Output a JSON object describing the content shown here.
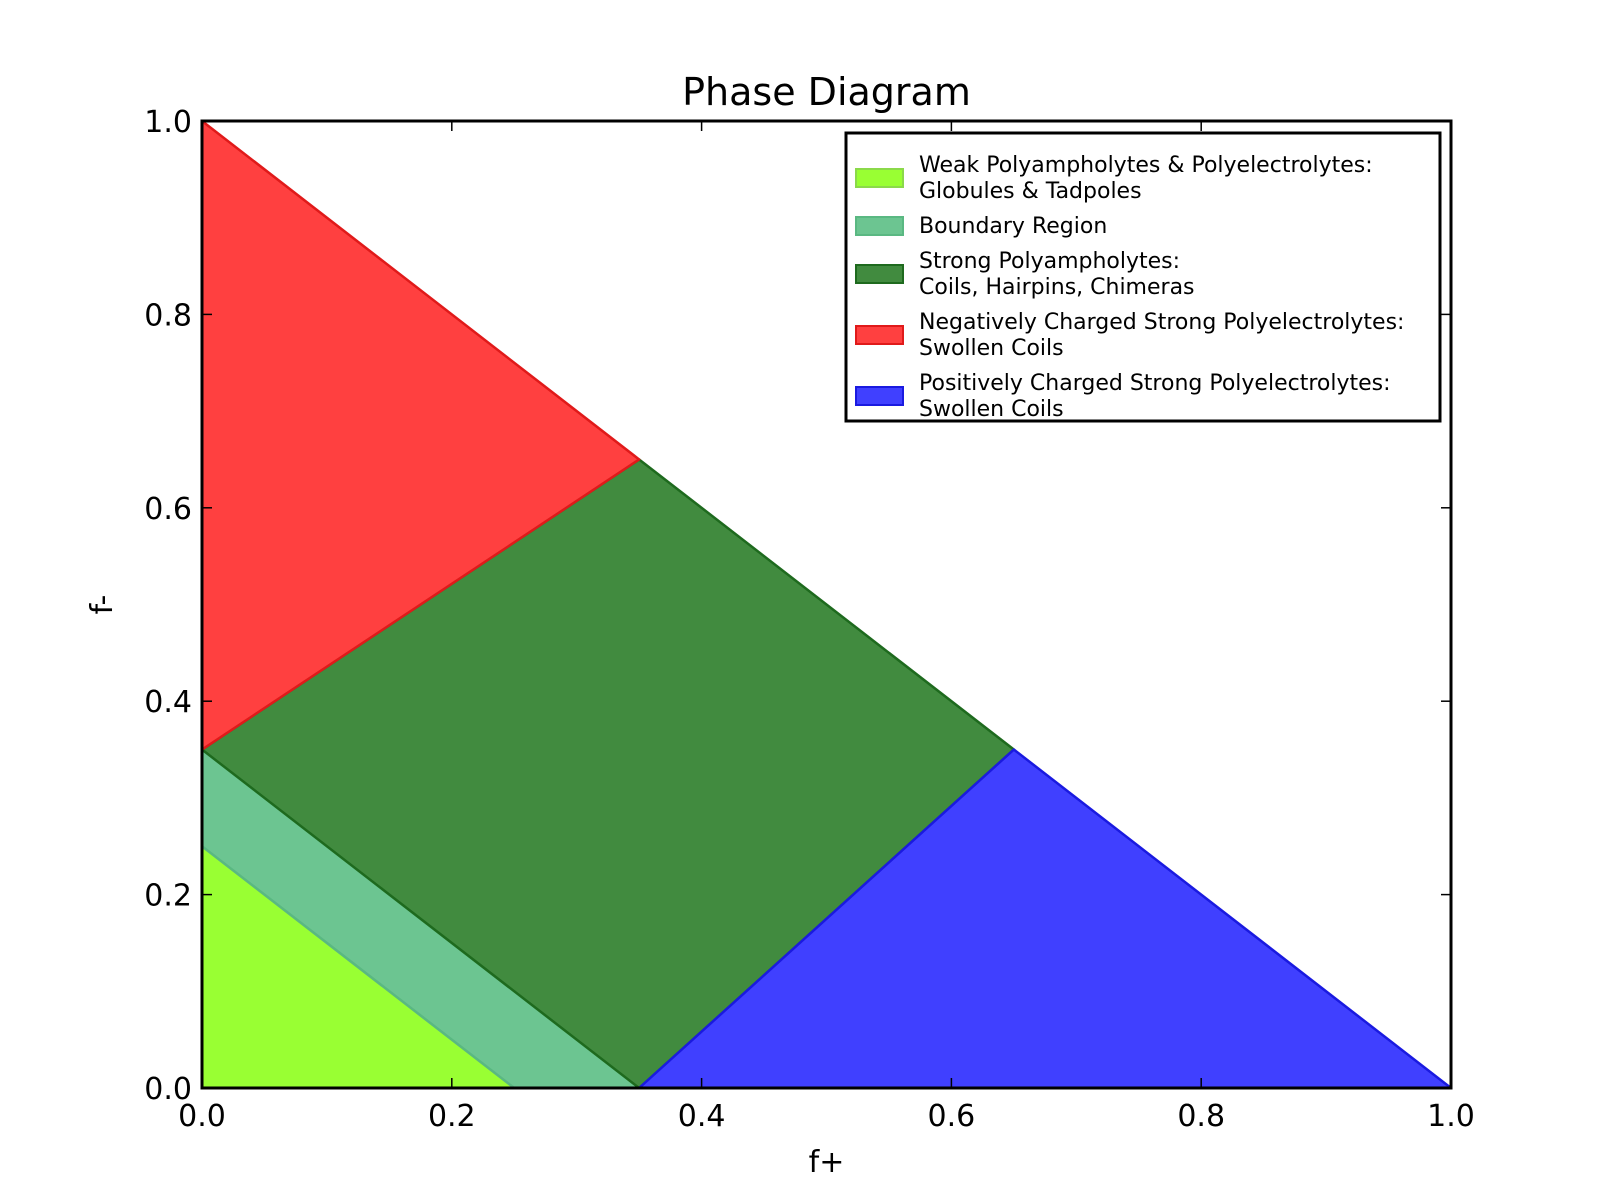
{
  "chart_data": {
    "type": "area",
    "title": "Phase Diagram",
    "xlabel": "f+",
    "ylabel": "f-",
    "xlim": [
      0.0,
      1.0
    ],
    "ylim": [
      0.0,
      1.0
    ],
    "x_ticks": [
      "0.0",
      "0.2",
      "0.4",
      "0.6",
      "0.8",
      "1.0"
    ],
    "y_ticks": [
      "0.0",
      "0.2",
      "0.4",
      "0.6",
      "0.8",
      "1.0"
    ],
    "grid": false,
    "legend_position": "top-right",
    "regions": [
      {
        "id": "weak",
        "label_lines": [
          "Weak Polyampholytes & Polyelectrolytes:",
          "Globules & Tadpoles"
        ],
        "fill": "#99ff33",
        "stroke": "#8bd94a",
        "points": [
          [
            0.0,
            0.0
          ],
          [
            0.25,
            0.0
          ],
          [
            0.0,
            0.25
          ]
        ]
      },
      {
        "id": "boundary",
        "label_lines": [
          "Boundary Region"
        ],
        "fill": "#6cc591",
        "stroke": "#5ab882",
        "points": [
          [
            0.25,
            0.0
          ],
          [
            0.35,
            0.0
          ],
          [
            0.0,
            0.35
          ],
          [
            0.0,
            0.25
          ]
        ]
      },
      {
        "id": "strong-pa",
        "label_lines": [
          "Strong Polyampholytes:",
          "Coils, Hairpins, Chimeras"
        ],
        "fill": "#418b3f",
        "stroke": "#1e6a1e",
        "points": [
          [
            0.35,
            0.0
          ],
          [
            0.65,
            0.35
          ],
          [
            0.35,
            0.65
          ],
          [
            0.0,
            0.35
          ]
        ]
      },
      {
        "id": "negative",
        "label_lines": [
          "Negatively Charged Strong Polyelectrolytes:",
          "Swollen Coils"
        ],
        "fill": "#ff4040",
        "stroke": "#e01a1a",
        "points": [
          [
            0.0,
            0.35
          ],
          [
            0.35,
            0.65
          ],
          [
            0.0,
            1.0
          ]
        ]
      },
      {
        "id": "positive",
        "label_lines": [
          "Positively Charged Strong Polyelectrolytes:",
          "Swollen Coils"
        ],
        "fill": "#4040ff",
        "stroke": "#1a1ae0",
        "points": [
          [
            0.35,
            0.0
          ],
          [
            1.0,
            0.0
          ],
          [
            0.65,
            0.35
          ]
        ]
      }
    ]
  }
}
